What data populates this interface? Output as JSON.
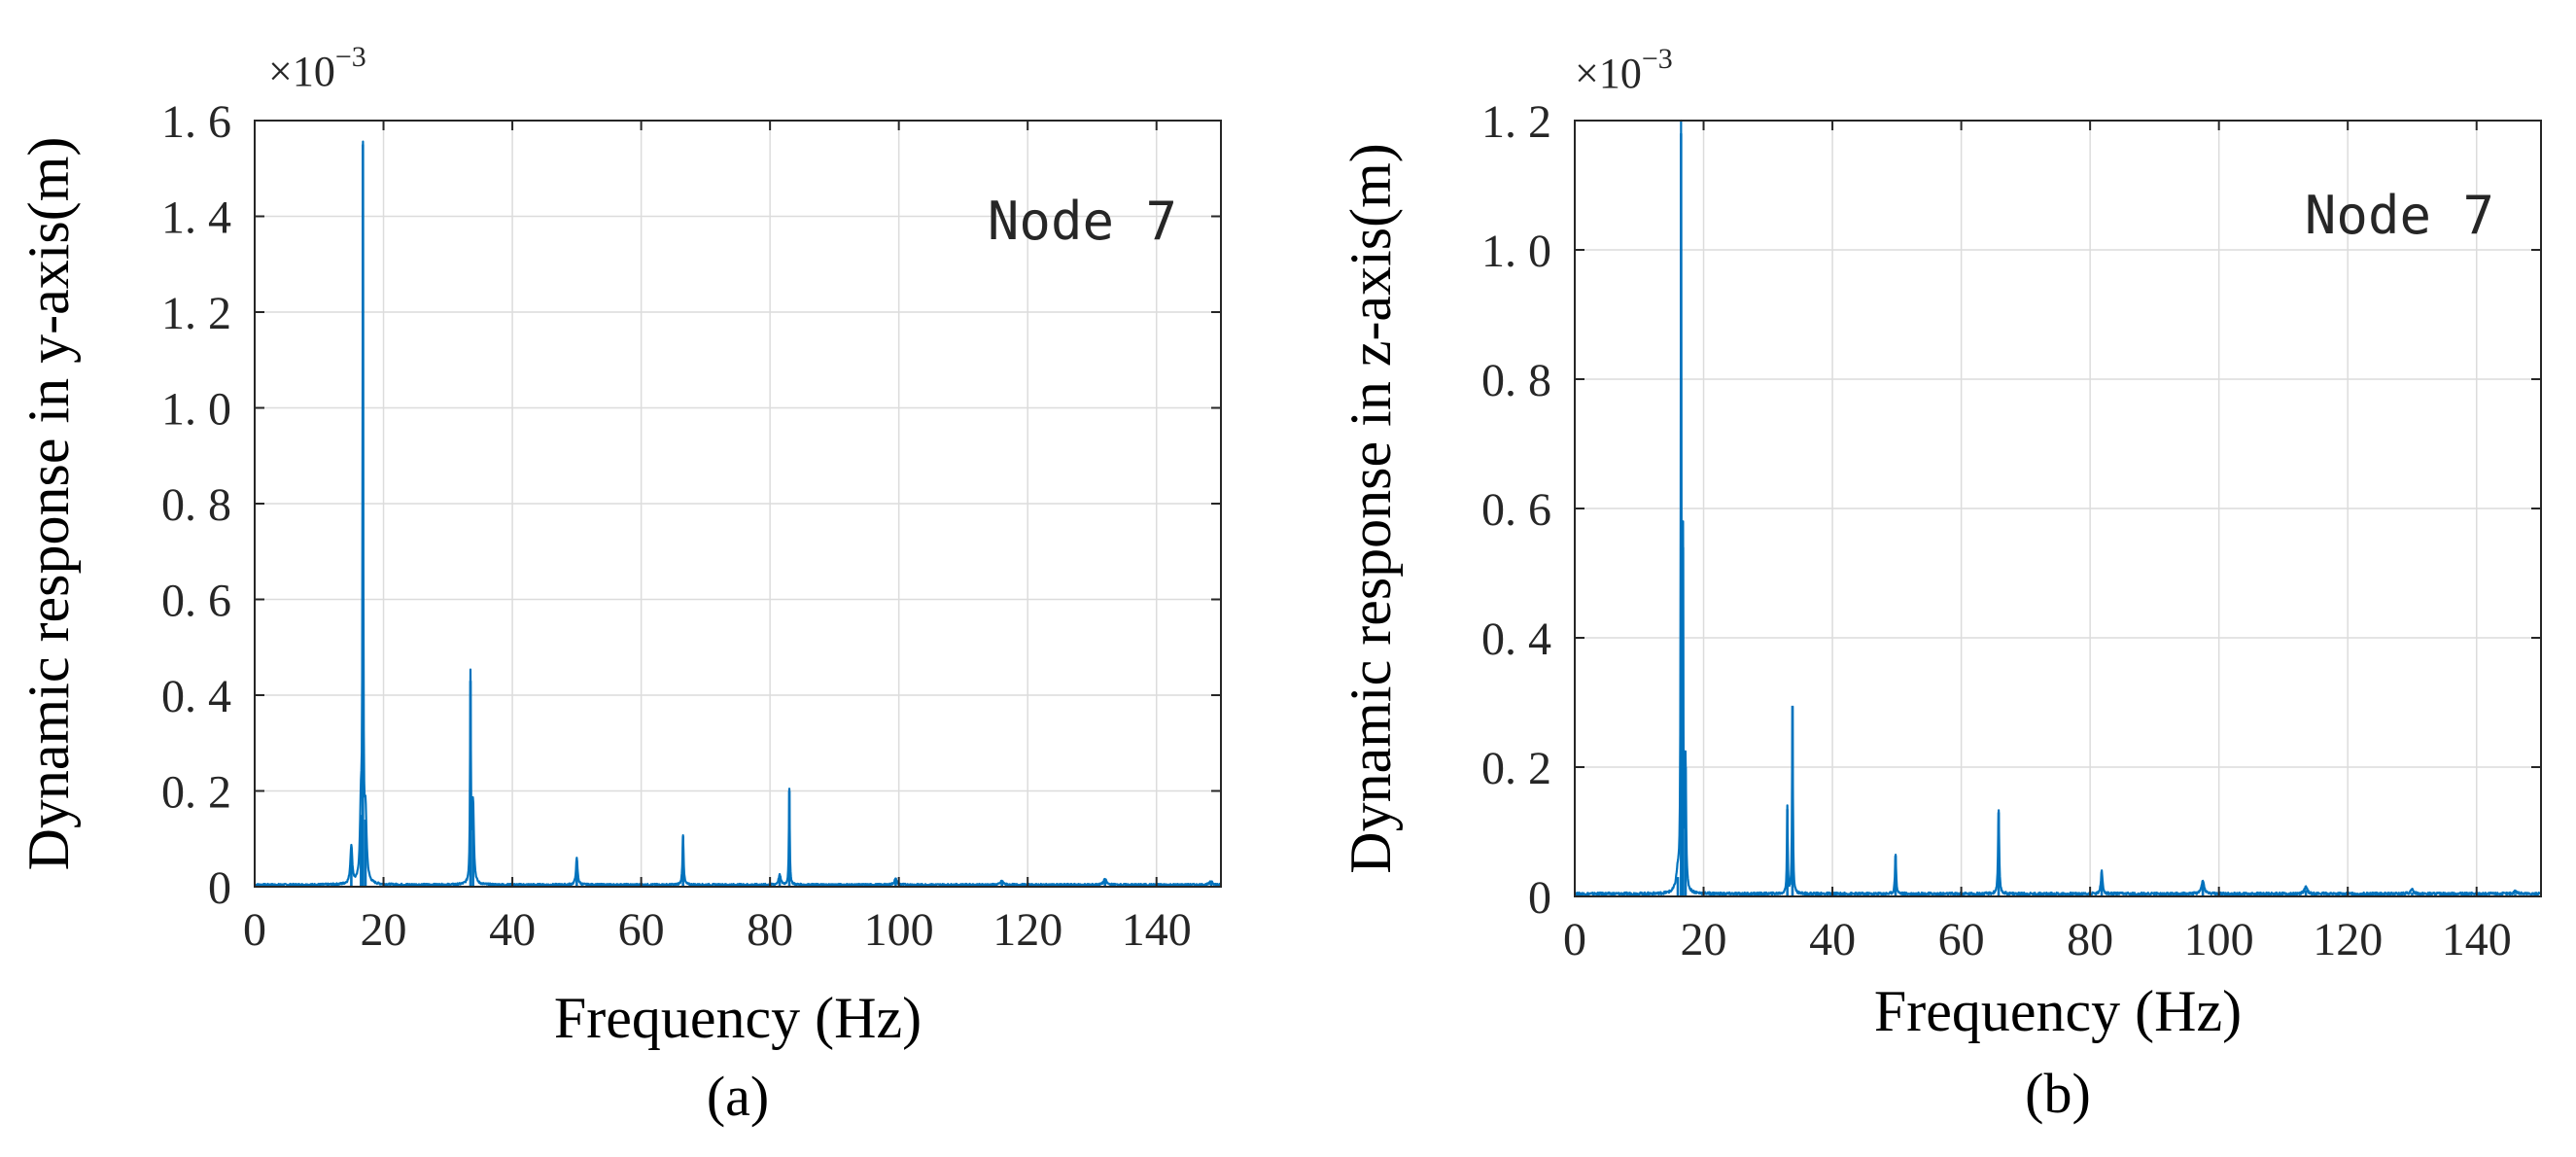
{
  "chart_data": [
    {
      "type": "line",
      "panel": "a",
      "caption": "(a)",
      "xlabel": "Frequency (Hz)",
      "ylabel": "Dynamic response in y-axis(m)",
      "annotation": "Node 7",
      "exponent_base": "×10",
      "exponent_power": "−3",
      "xlim": [
        0,
        150
      ],
      "ylim": [
        0,
        1.6
      ],
      "xticks": [
        0,
        20,
        40,
        60,
        80,
        100,
        120,
        140
      ],
      "xtick_labels": [
        "0",
        "20",
        "40",
        "60",
        "80",
        "100",
        "120",
        "140"
      ],
      "yticks": [
        0,
        0.2,
        0.4,
        0.6,
        0.8,
        1.0,
        1.2,
        1.4,
        1.6
      ],
      "ytick_labels": [
        "0",
        "0. 2",
        "0. 4",
        "0. 6",
        "0. 8",
        "1. 0",
        "1. 2",
        "1. 4",
        "1. 6"
      ],
      "grid": true,
      "color": "#0072BD",
      "peaks": [
        {
          "f": 15.0,
          "v": 0.08,
          "w": 0.35
        },
        {
          "f": 16.5,
          "v": 0.15,
          "w": 0.35
        },
        {
          "f": 16.8,
          "v": 1.55,
          "w": 0.12
        },
        {
          "f": 17.2,
          "v": 0.14,
          "w": 0.4
        },
        {
          "f": 33.5,
          "v": 0.43,
          "w": 0.15
        },
        {
          "f": 33.9,
          "v": 0.17,
          "w": 0.3
        },
        {
          "f": 50.0,
          "v": 0.055,
          "w": 0.3
        },
        {
          "f": 66.5,
          "v": 0.105,
          "w": 0.2
        },
        {
          "f": 81.5,
          "v": 0.02,
          "w": 0.4
        },
        {
          "f": 83.0,
          "v": 0.2,
          "w": 0.15
        },
        {
          "f": 99.5,
          "v": 0.012,
          "w": 0.5
        },
        {
          "f": 116.0,
          "v": 0.008,
          "w": 0.5
        },
        {
          "f": 132.0,
          "v": 0.012,
          "w": 0.5
        },
        {
          "f": 148.5,
          "v": 0.008,
          "w": 0.5
        }
      ]
    },
    {
      "type": "line",
      "panel": "b",
      "caption": "(b)",
      "xlabel": "Frequency (Hz)",
      "ylabel": "Dynamic response in z-axis(m)",
      "annotation": "Node 7",
      "exponent_base": "×10",
      "exponent_power": "−3",
      "xlim": [
        0,
        150
      ],
      "ylim": [
        0,
        1.2
      ],
      "xticks": [
        0,
        20,
        40,
        60,
        80,
        100,
        120,
        140
      ],
      "xtick_labels": [
        "0",
        "20",
        "40",
        "60",
        "80",
        "100",
        "120",
        "140"
      ],
      "yticks": [
        0,
        0.2,
        0.4,
        0.6,
        0.8,
        1.0,
        1.2
      ],
      "ytick_labels": [
        "0",
        "0. 2",
        "0. 4",
        "0. 6",
        "0. 8",
        "1. 0",
        "1. 2"
      ],
      "grid": true,
      "color": "#0072BD",
      "peaks": [
        {
          "f": 16.0,
          "v": 0.03,
          "w": 0.6
        },
        {
          "f": 16.5,
          "v": 1.18,
          "w": 0.12
        },
        {
          "f": 16.8,
          "v": 0.54,
          "w": 0.12
        },
        {
          "f": 17.2,
          "v": 0.2,
          "w": 0.2
        },
        {
          "f": 33.0,
          "v": 0.135,
          "w": 0.15
        },
        {
          "f": 33.8,
          "v": 0.295,
          "w": 0.15
        },
        {
          "f": 49.8,
          "v": 0.063,
          "w": 0.2
        },
        {
          "f": 65.8,
          "v": 0.13,
          "w": 0.2
        },
        {
          "f": 81.8,
          "v": 0.035,
          "w": 0.3
        },
        {
          "f": 97.5,
          "v": 0.02,
          "w": 0.5
        },
        {
          "f": 113.5,
          "v": 0.01,
          "w": 0.6
        },
        {
          "f": 130.0,
          "v": 0.006,
          "w": 0.6
        },
        {
          "f": 146.0,
          "v": 0.004,
          "w": 0.6
        }
      ]
    }
  ]
}
